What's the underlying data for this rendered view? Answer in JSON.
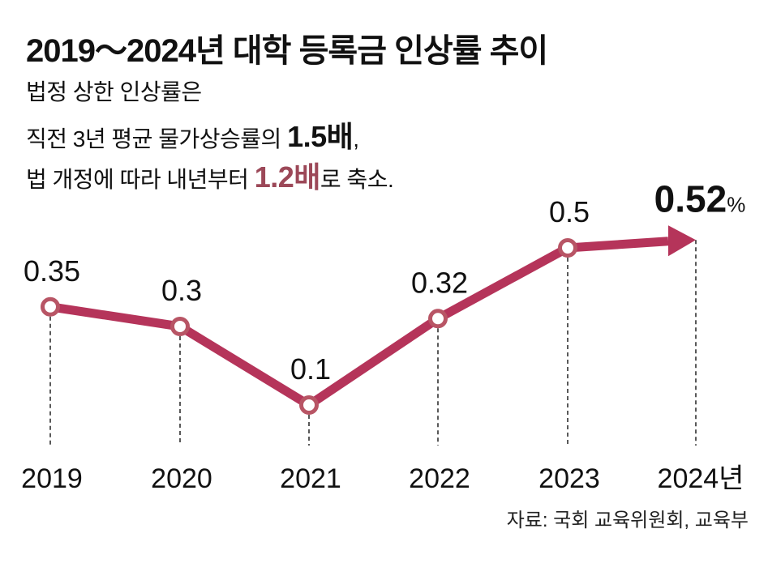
{
  "title": "2019～2024년 대학 등록금 인상률 추이",
  "subtitle": {
    "line1": "법정 상한 인상률은",
    "line2_pre": "직전 3년 평균 물가상승률의 ",
    "line2_em": "1.5배",
    "line2_post": ",",
    "line3_pre": "법 개정에 따라 내년부터 ",
    "line3_em": "1.2배",
    "line3_post": "로 축소."
  },
  "source": "자료: 국회 교육위원회, 교육부",
  "colors": {
    "line": "#b5345a",
    "marker": "#b85565",
    "accent": "#9c4858"
  },
  "chart_data": {
    "type": "line",
    "title": "2019～2024년 대학 등록금 인상률 추이",
    "xlabel": "",
    "ylabel": "",
    "unit": "%",
    "categories": [
      "2019",
      "2020",
      "2021",
      "2022",
      "2023",
      "2024년"
    ],
    "values": [
      0.35,
      0.3,
      0.1,
      0.32,
      0.5,
      0.52
    ],
    "labels": [
      "0.35",
      "0.3",
      "0.1",
      "0.32",
      "0.5",
      "0.52"
    ],
    "grid": false
  }
}
